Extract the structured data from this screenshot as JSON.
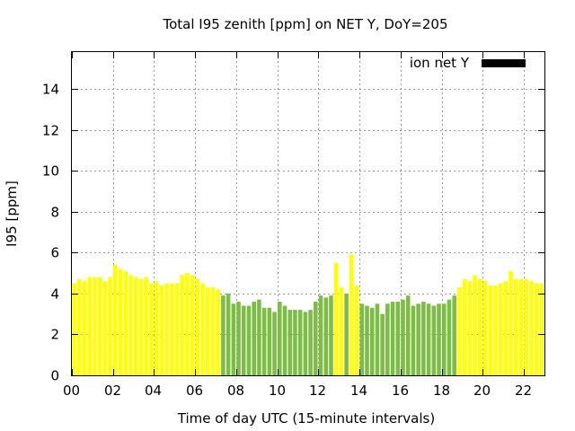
{
  "chart_data": {
    "type": "bar",
    "title": "Total I95 zenith [ppm] on NET Y, DoY=205",
    "xlabel": "Time of day UTC (15-minute intervals)",
    "ylabel": "I95 [ppm]",
    "xlim": [
      0,
      23
    ],
    "ylim": [
      0,
      15.8
    ],
    "xticks": [
      "00",
      "02",
      "04",
      "06",
      "08",
      "10",
      "12",
      "14",
      "16",
      "18",
      "20",
      "22"
    ],
    "yticks": [
      "0",
      "2",
      "4",
      "6",
      "8",
      "10",
      "12",
      "14"
    ],
    "grid": true,
    "legend": {
      "label": "ion net Y",
      "color": "#000000",
      "placement": "top-right"
    },
    "interval_hours": 0.25,
    "colors": {
      "yellow": "#ffff00",
      "green": "#7cbd43"
    },
    "series": [
      {
        "x": [
          0.0,
          0.25,
          0.5,
          0.75,
          1.0,
          1.25,
          1.5,
          1.75,
          2.0,
          2.25,
          2.5,
          2.75,
          3.0,
          3.25,
          3.5,
          3.75,
          4.0,
          4.25,
          4.5,
          4.75,
          5.0,
          5.25,
          5.5,
          5.75,
          6.0,
          6.25,
          6.5,
          6.75,
          7.0,
          7.25,
          7.5,
          7.75,
          8.0,
          8.25,
          8.5,
          8.75,
          9.0,
          9.25,
          9.5,
          9.75,
          10.0,
          10.25,
          10.5,
          10.75,
          11.0,
          11.25,
          11.5,
          11.75,
          12.0,
          12.25,
          12.5,
          12.75,
          13.0,
          13.25,
          13.5,
          13.75,
          14.0,
          14.25,
          14.5,
          14.75,
          15.0,
          15.25,
          15.5,
          15.75,
          16.0,
          16.25,
          16.5,
          16.75,
          17.0,
          17.25,
          17.5,
          17.75,
          18.0,
          18.25,
          18.5,
          18.75,
          19.0,
          19.25,
          19.5,
          19.75,
          20.0,
          20.25,
          20.5,
          20.75,
          21.0,
          21.25,
          21.5,
          21.75,
          22.0,
          22.25,
          22.5,
          22.75
        ],
        "values": [
          4.5,
          4.7,
          4.6,
          4.8,
          4.8,
          4.8,
          4.6,
          4.8,
          5.4,
          5.2,
          5.1,
          4.9,
          4.8,
          4.7,
          4.8,
          4.5,
          4.6,
          4.4,
          4.5,
          4.5,
          4.5,
          4.9,
          5.0,
          4.9,
          4.7,
          4.5,
          4.3,
          4.3,
          4.2,
          3.9,
          4.0,
          3.5,
          3.6,
          3.4,
          3.4,
          3.6,
          3.7,
          3.3,
          3.3,
          3.1,
          3.6,
          3.4,
          3.2,
          3.2,
          3.2,
          3.1,
          3.2,
          3.6,
          3.9,
          3.8,
          3.9,
          5.5,
          4.3,
          4.0,
          5.9,
          4.4,
          3.5,
          3.4,
          3.3,
          3.5,
          3.0,
          3.5,
          3.6,
          3.6,
          3.7,
          3.9,
          3.4,
          3.5,
          3.6,
          3.5,
          3.4,
          3.5,
          3.5,
          3.7,
          3.9,
          4.3,
          4.7,
          4.6,
          4.9,
          4.7,
          4.6,
          4.4,
          4.4,
          4.5,
          4.6,
          5.1,
          4.7,
          4.7,
          4.7,
          4.6,
          4.5,
          4.5
        ],
        "color_class": [
          "yellow",
          "yellow",
          "yellow",
          "yellow",
          "yellow",
          "yellow",
          "yellow",
          "yellow",
          "yellow",
          "yellow",
          "yellow",
          "yellow",
          "yellow",
          "yellow",
          "yellow",
          "yellow",
          "yellow",
          "yellow",
          "yellow",
          "yellow",
          "yellow",
          "yellow",
          "yellow",
          "yellow",
          "yellow",
          "yellow",
          "yellow",
          "yellow",
          "yellow",
          "green",
          "green",
          "green",
          "green",
          "green",
          "green",
          "green",
          "green",
          "green",
          "green",
          "green",
          "green",
          "green",
          "green",
          "green",
          "green",
          "green",
          "green",
          "green",
          "green",
          "green",
          "green",
          "yellow",
          "yellow",
          "green",
          "yellow",
          "yellow",
          "green",
          "green",
          "green",
          "green",
          "green",
          "green",
          "green",
          "green",
          "green",
          "green",
          "green",
          "green",
          "green",
          "green",
          "green",
          "green",
          "green",
          "green",
          "green",
          "yellow",
          "yellow",
          "yellow",
          "yellow",
          "yellow",
          "yellow",
          "yellow",
          "yellow",
          "yellow",
          "yellow",
          "yellow",
          "yellow",
          "yellow",
          "yellow",
          "yellow",
          "yellow",
          "yellow"
        ]
      }
    ]
  }
}
